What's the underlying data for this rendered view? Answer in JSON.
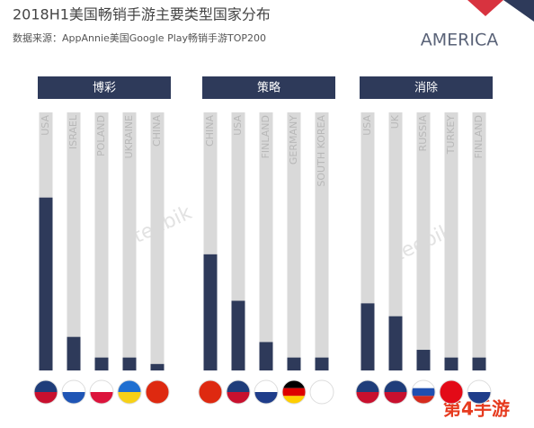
{
  "header": {
    "title": "2018H1美国畅销手游主要类型国家分布",
    "subtitle": "数据来源：AppAnnie美国Google Play畅销手游TOP200",
    "logo": "AMERICA"
  },
  "watermarks": {
    "brand": "teebik",
    "site": "第4手游"
  },
  "chart_data": [
    {
      "type": "bar",
      "title": "博彩",
      "categories": [
        "USA",
        "ISRAEL",
        "POLAND",
        "UKRAINE",
        "CHINA"
      ],
      "values": [
        67,
        13,
        5,
        5,
        2.5
      ],
      "ylim": [
        0,
        100
      ],
      "color": "#2e3a5a",
      "track_color": "#d9d9d9"
    },
    {
      "type": "bar",
      "title": "策略",
      "categories": [
        "CHINA",
        "USA",
        "FINLAND",
        "GERMANY",
        "SOUTH KOREA"
      ],
      "values": [
        45,
        27,
        11,
        5,
        5
      ],
      "ylim": [
        0,
        100
      ],
      "color": "#2e3a5a",
      "track_color": "#d9d9d9"
    },
    {
      "type": "bar",
      "title": "消除",
      "categories": [
        "USA",
        "UK",
        "RUSSIA",
        "TURKEY",
        "FINLAND"
      ],
      "values": [
        26,
        21,
        8,
        5,
        5
      ],
      "ylim": [
        0,
        100
      ],
      "color": "#2e3a5a",
      "track_color": "#d9d9d9"
    }
  ]
}
